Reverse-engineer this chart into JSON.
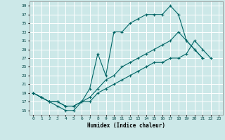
{
  "xlabel": "Humidex (Indice chaleur)",
  "xlim": [
    -0.5,
    23.5
  ],
  "ylim": [
    14,
    40
  ],
  "yticks": [
    15,
    17,
    19,
    21,
    23,
    25,
    27,
    29,
    31,
    33,
    35,
    37,
    39
  ],
  "xticks": [
    0,
    1,
    2,
    3,
    4,
    5,
    6,
    7,
    8,
    9,
    10,
    11,
    12,
    13,
    14,
    15,
    16,
    17,
    18,
    19,
    20,
    21,
    22,
    23
  ],
  "bg_color": "#cce8e8",
  "grid_color": "#ffffff",
  "line_color": "#006666",
  "lines": [
    {
      "x": [
        0,
        1,
        2,
        3,
        4,
        5,
        6,
        7,
        8,
        9,
        10,
        11,
        12,
        13,
        14,
        15,
        16,
        17,
        18,
        19,
        20,
        21
      ],
      "y": [
        19,
        18,
        17,
        16,
        15,
        15,
        17,
        20,
        28,
        23,
        33,
        33,
        35,
        36,
        37,
        37,
        37,
        39,
        37,
        31,
        29,
        27
      ]
    },
    {
      "x": [
        0,
        1,
        2,
        3,
        4,
        5,
        6,
        7,
        8,
        9,
        10,
        11,
        12,
        13,
        14,
        15,
        16,
        17,
        18,
        19,
        20,
        21,
        22,
        23
      ],
      "y": [
        19,
        18,
        17,
        17,
        16,
        16,
        17,
        17,
        19,
        20,
        21,
        22,
        23,
        24,
        25,
        26,
        26,
        27,
        27,
        28,
        31,
        29,
        27,
        null
      ]
    },
    {
      "x": [
        0,
        1,
        2,
        3,
        4,
        5,
        6,
        7,
        8,
        9,
        10,
        11,
        12,
        13,
        14,
        15,
        16,
        17,
        18,
        19,
        20,
        21,
        22,
        23
      ],
      "y": [
        19,
        18,
        17,
        17,
        16,
        16,
        17,
        18,
        20,
        22,
        23,
        25,
        26,
        27,
        28,
        29,
        30,
        31,
        33,
        31,
        29,
        27,
        null,
        null
      ]
    }
  ]
}
